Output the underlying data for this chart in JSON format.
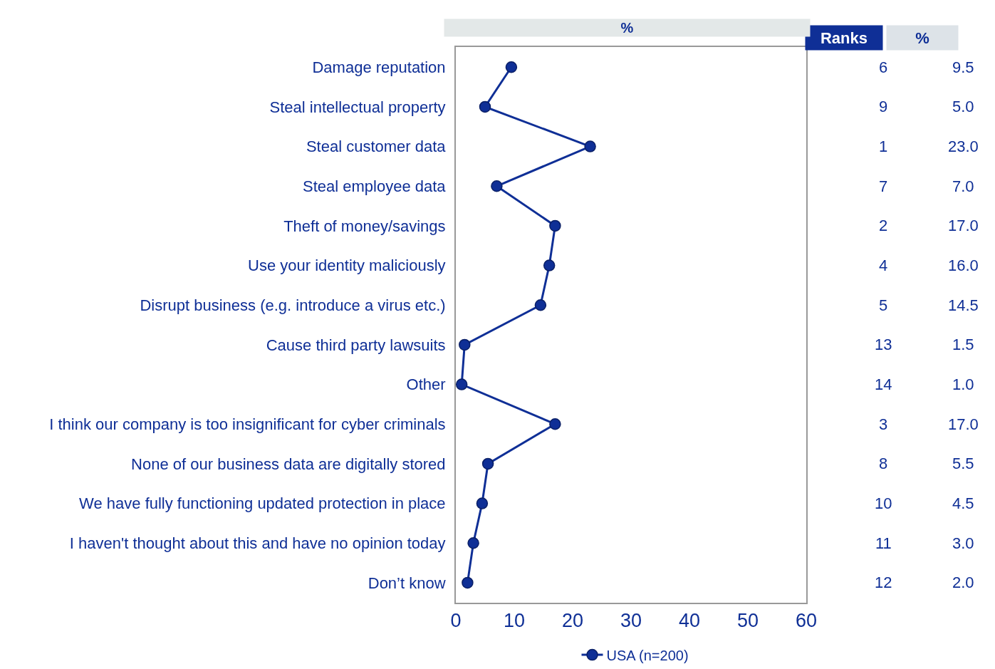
{
  "chart_data": {
    "type": "line",
    "orientation": "horizontal",
    "xlabel": "%",
    "categories": [
      "Damage reputation",
      "Steal intellectual property",
      "Steal customer data",
      "Steal employee data",
      "Theft of money/savings",
      "Use your identity maliciously",
      "Disrupt business (e.g. introduce a virus etc.)",
      "Cause third party lawsuits",
      "Other",
      "I think our company is too insignificant for cyber criminals",
      "None of our business data are digitally stored",
      "We have fully functioning updated protection in place",
      "I haven't thought about this and have no opinion today",
      "Don’t know"
    ],
    "series": [
      {
        "name": "USA (n=200)",
        "color": "#0f2f96",
        "values": [
          9.5,
          5.0,
          23.0,
          7.0,
          17.0,
          16.0,
          14.5,
          1.5,
          1.0,
          17.0,
          5.5,
          4.5,
          3.0,
          2.0
        ],
        "value_labels": [
          "9.5",
          "5.0",
          "23.0",
          "7.0",
          "17.0",
          "16.0",
          "14.5",
          "1.5",
          "1.0",
          "17.0",
          "5.5",
          "4.5",
          "3.0",
          "2.0"
        ]
      }
    ],
    "annotations": [
      "Ranks",
      "%",
      "6",
      "9",
      "1",
      "7",
      "2",
      "4",
      "5",
      "13",
      "14",
      "3",
      "8",
      "10",
      "11",
      "12"
    ],
    "xlim": [
      0,
      60
    ],
    "xticks": [
      0,
      10,
      20,
      30,
      40,
      50,
      60
    ],
    "legend": "bottom",
    "marker": "circle",
    "line_style": "solid"
  }
}
